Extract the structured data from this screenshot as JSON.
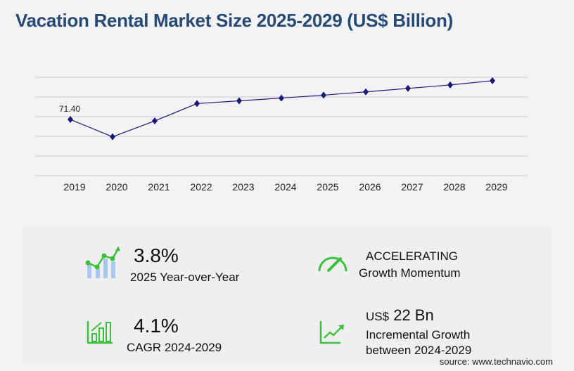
{
  "title": "Vacation Rental Market Size 2025-2029 (US$ Billion)",
  "chart_data": {
    "type": "line",
    "title": "Vacation Rental Market Size 2025-2029 (US$ Billion)",
    "categories": [
      "2019",
      "2020",
      "2021",
      "2022",
      "2023",
      "2024",
      "2025",
      "2026",
      "2027",
      "2028",
      "2029"
    ],
    "values": [
      71.4,
      49.4,
      69.6,
      91.6,
      95.1,
      98.6,
      102.3,
      106.5,
      110.9,
      115.3,
      120.6
    ],
    "data_labels": {
      "2019": "71.40"
    },
    "ylim": [
      0,
      125
    ],
    "grid": true,
    "line_color": "#1a1a7a",
    "marker": "diamond"
  },
  "stats": {
    "yoy_value": "3.8%",
    "yoy_label": "2025 Year-over-Year",
    "momentum_value": "ACCELERATING",
    "momentum_label": "Growth Momentum",
    "cagr_value": "4.1%",
    "cagr_label": "CAGR 2024-2029",
    "incr_prefix": "US$",
    "incr_value": "22 Bn",
    "incr_label1": "Incremental Growth",
    "incr_label2": "between 2024-2029"
  },
  "source": "source: www.technavio.com",
  "colors": {
    "accent_green": "#3cc13b",
    "bar_blue": "#a9c8f0",
    "title": "#274a75"
  }
}
